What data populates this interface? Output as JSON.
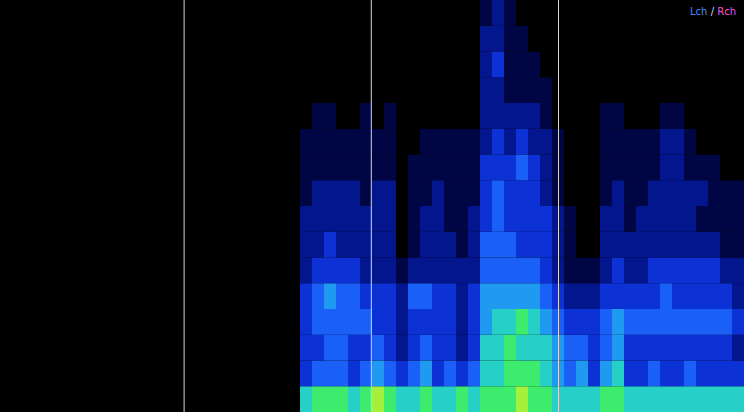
{
  "chart_data": {
    "type": "heatmap",
    "xlim": [
      0,
      62
    ],
    "ylim": [
      0,
      16
    ],
    "tick_labels": false,
    "color_range": [
      0,
      10
    ],
    "markers": [
      15.3,
      30.9,
      46.5
    ],
    "channels": [
      {
        "name": "Lch",
        "color": "#4a86ff"
      },
      {
        "name": "Rch",
        "color": "#ff4fc8"
      }
    ],
    "channel_separator": "/",
    "cells": [
      [
        0,
        0,
        0,
        0,
        0,
        0,
        0,
        0,
        0,
        0,
        0,
        0,
        0,
        0,
        0,
        0,
        0,
        0,
        0,
        0,
        0,
        0,
        0,
        0,
        0,
        6,
        7,
        7,
        7,
        6,
        7,
        8,
        7,
        6,
        6,
        7,
        6,
        6,
        7,
        6,
        7,
        7,
        7,
        8,
        7,
        7,
        6,
        6,
        6,
        6,
        7,
        7,
        6,
        6,
        6,
        6,
        6,
        6,
        6,
        6,
        6,
        6
      ],
      [
        0,
        0,
        0,
        0,
        0,
        0,
        0,
        0,
        0,
        0,
        0,
        0,
        0,
        0,
        0,
        0,
        0,
        0,
        0,
        0,
        0,
        0,
        0,
        0,
        0,
        3,
        4,
        4,
        4,
        3,
        4,
        5,
        4,
        3,
        4,
        5,
        3,
        4,
        3,
        4,
        6,
        6,
        7,
        7,
        7,
        6,
        5,
        4,
        5,
        3,
        5,
        6,
        3,
        3,
        4,
        3,
        3,
        4,
        3,
        3,
        3,
        3
      ],
      [
        0,
        0,
        0,
        0,
        0,
        0,
        0,
        0,
        0,
        0,
        0,
        0,
        0,
        0,
        0,
        0,
        0,
        0,
        0,
        0,
        0,
        0,
        0,
        0,
        0,
        3,
        3,
        4,
        4,
        3,
        3,
        4,
        3,
        2,
        3,
        4,
        3,
        3,
        2,
        3,
        6,
        6,
        7,
        6,
        6,
        6,
        5,
        4,
        4,
        3,
        4,
        5,
        3,
        3,
        3,
        3,
        3,
        3,
        3,
        3,
        3,
        2
      ],
      [
        0,
        0,
        0,
        0,
        0,
        0,
        0,
        0,
        0,
        0,
        0,
        0,
        0,
        0,
        0,
        0,
        0,
        0,
        0,
        0,
        0,
        0,
        0,
        0,
        0,
        3,
        4,
        4,
        4,
        4,
        4,
        3,
        3,
        2,
        3,
        3,
        3,
        3,
        2,
        3,
        5,
        6,
        6,
        7,
        6,
        5,
        4,
        3,
        3,
        3,
        4,
        5,
        4,
        4,
        4,
        4,
        4,
        4,
        4,
        4,
        4,
        3
      ],
      [
        0,
        0,
        0,
        0,
        0,
        0,
        0,
        0,
        0,
        0,
        0,
        0,
        0,
        0,
        0,
        0,
        0,
        0,
        0,
        0,
        0,
        0,
        0,
        0,
        0,
        3,
        4,
        5,
        4,
        4,
        3,
        3,
        3,
        2,
        4,
        4,
        3,
        3,
        2,
        3,
        5,
        5,
        5,
        5,
        5,
        4,
        3,
        2,
        2,
        2,
        3,
        3,
        3,
        3,
        3,
        4,
        3,
        3,
        3,
        3,
        3,
        2
      ],
      [
        0,
        0,
        0,
        0,
        0,
        0,
        0,
        0,
        0,
        0,
        0,
        0,
        0,
        0,
        0,
        0,
        0,
        0,
        0,
        0,
        0,
        0,
        0,
        0,
        0,
        2,
        3,
        3,
        3,
        3,
        2,
        2,
        2,
        1,
        2,
        2,
        2,
        2,
        2,
        2,
        4,
        4,
        4,
        4,
        4,
        3,
        2,
        1,
        1,
        1,
        2,
        3,
        2,
        2,
        3,
        3,
        3,
        3,
        3,
        3,
        2,
        2
      ],
      [
        0,
        0,
        0,
        0,
        0,
        0,
        0,
        0,
        0,
        0,
        0,
        0,
        0,
        0,
        0,
        0,
        0,
        0,
        0,
        0,
        0,
        0,
        0,
        0,
        0,
        2,
        2,
        3,
        2,
        2,
        2,
        2,
        2,
        0,
        1,
        2,
        2,
        2,
        1,
        2,
        4,
        4,
        4,
        3,
        3,
        3,
        2,
        1,
        0,
        0,
        2,
        2,
        2,
        2,
        2,
        2,
        2,
        2,
        2,
        2,
        1,
        1
      ],
      [
        0,
        0,
        0,
        0,
        0,
        0,
        0,
        0,
        0,
        0,
        0,
        0,
        0,
        0,
        0,
        0,
        0,
        0,
        0,
        0,
        0,
        0,
        0,
        0,
        0,
        2,
        2,
        2,
        2,
        2,
        2,
        2,
        2,
        0,
        1,
        2,
        2,
        1,
        1,
        2,
        3,
        4,
        3,
        3,
        3,
        3,
        2,
        1,
        0,
        0,
        2,
        2,
        1,
        2,
        2,
        2,
        2,
        2,
        1,
        1,
        1,
        1
      ],
      [
        0,
        0,
        0,
        0,
        0,
        0,
        0,
        0,
        0,
        0,
        0,
        0,
        0,
        0,
        0,
        0,
        0,
        0,
        0,
        0,
        0,
        0,
        0,
        0,
        0,
        1,
        2,
        2,
        2,
        2,
        1,
        2,
        2,
        0,
        1,
        1,
        2,
        1,
        1,
        1,
        3,
        4,
        3,
        3,
        3,
        2,
        1,
        0,
        0,
        0,
        1,
        2,
        1,
        1,
        2,
        2,
        2,
        2,
        2,
        1,
        1,
        1
      ],
      [
        0,
        0,
        0,
        0,
        0,
        0,
        0,
        0,
        0,
        0,
        0,
        0,
        0,
        0,
        0,
        0,
        0,
        0,
        0,
        0,
        0,
        0,
        0,
        0,
        0,
        1,
        1,
        1,
        1,
        1,
        1,
        1,
        1,
        0,
        1,
        1,
        1,
        1,
        1,
        1,
        3,
        3,
        3,
        4,
        3,
        2,
        1,
        0,
        0,
        0,
        1,
        1,
        1,
        1,
        1,
        2,
        2,
        1,
        1,
        1,
        0,
        0
      ],
      [
        0,
        0,
        0,
        0,
        0,
        0,
        0,
        0,
        0,
        0,
        0,
        0,
        0,
        0,
        0,
        0,
        0,
        0,
        0,
        0,
        0,
        0,
        0,
        0,
        0,
        1,
        1,
        1,
        1,
        1,
        1,
        1,
        1,
        0,
        0,
        1,
        1,
        1,
        1,
        1,
        2,
        3,
        2,
        3,
        2,
        2,
        1,
        0,
        0,
        0,
        1,
        1,
        1,
        1,
        1,
        2,
        2,
        1,
        0,
        0,
        0,
        0
      ],
      [
        0,
        0,
        0,
        0,
        0,
        0,
        0,
        0,
        0,
        0,
        0,
        0,
        0,
        0,
        0,
        0,
        0,
        0,
        0,
        0,
        0,
        0,
        0,
        0,
        0,
        0,
        1,
        1,
        0,
        0,
        1,
        0,
        1,
        0,
        0,
        0,
        0,
        0,
        0,
        0,
        2,
        2,
        2,
        2,
        2,
        1,
        0,
        0,
        0,
        0,
        1,
        1,
        0,
        0,
        0,
        1,
        1,
        0,
        0,
        0,
        0,
        0
      ],
      [
        0,
        0,
        0,
        0,
        0,
        0,
        0,
        0,
        0,
        0,
        0,
        0,
        0,
        0,
        0,
        0,
        0,
        0,
        0,
        0,
        0,
        0,
        0,
        0,
        0,
        0,
        0,
        0,
        0,
        0,
        0,
        0,
        0,
        0,
        0,
        0,
        0,
        0,
        0,
        0,
        2,
        2,
        1,
        1,
        1,
        1,
        0,
        0,
        0,
        0,
        0,
        0,
        0,
        0,
        0,
        0,
        0,
        0,
        0,
        0,
        0,
        0
      ],
      [
        0,
        0,
        0,
        0,
        0,
        0,
        0,
        0,
        0,
        0,
        0,
        0,
        0,
        0,
        0,
        0,
        0,
        0,
        0,
        0,
        0,
        0,
        0,
        0,
        0,
        0,
        0,
        0,
        0,
        0,
        0,
        0,
        0,
        0,
        0,
        0,
        0,
        0,
        0,
        0,
        2,
        3,
        1,
        1,
        1,
        0,
        0,
        0,
        0,
        0,
        0,
        0,
        0,
        0,
        0,
        0,
        0,
        0,
        0,
        0,
        0,
        0
      ],
      [
        0,
        0,
        0,
        0,
        0,
        0,
        0,
        0,
        0,
        0,
        0,
        0,
        0,
        0,
        0,
        0,
        0,
        0,
        0,
        0,
        0,
        0,
        0,
        0,
        0,
        0,
        0,
        0,
        0,
        0,
        0,
        0,
        0,
        0,
        0,
        0,
        0,
        0,
        0,
        0,
        2,
        2,
        1,
        1,
        0,
        0,
        0,
        0,
        0,
        0,
        0,
        0,
        0,
        0,
        0,
        0,
        0,
        0,
        0,
        0,
        0,
        0
      ],
      [
        0,
        0,
        0,
        0,
        0,
        0,
        0,
        0,
        0,
        0,
        0,
        0,
        0,
        0,
        0,
        0,
        0,
        0,
        0,
        0,
        0,
        0,
        0,
        0,
        0,
        0,
        0,
        0,
        0,
        0,
        0,
        0,
        0,
        0,
        0,
        0,
        0,
        0,
        0,
        0,
        1,
        2,
        1,
        0,
        0,
        0,
        0,
        0,
        0,
        0,
        0,
        0,
        0,
        0,
        0,
        0,
        0,
        0,
        0,
        0,
        0,
        0
      ]
    ]
  }
}
